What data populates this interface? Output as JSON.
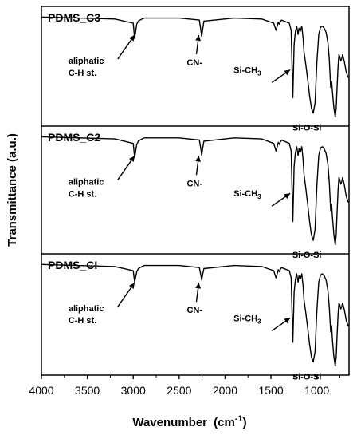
{
  "chart_data": {
    "type": "line",
    "xlabel": "Wavenumber",
    "xlabel_unit": "(cm",
    "xlabel_unit_sup": "-1",
    "xlabel_unit_close": ")",
    "ylabel": "Transmittance (a.u.)",
    "xlim": [
      4000,
      650
    ],
    "x_reversed": true,
    "x_ticks": [
      "4000",
      "3500",
      "3000",
      "2500",
      "2000",
      "1500",
      "1000"
    ],
    "x_tick_values": [
      4000,
      3500,
      3000,
      2500,
      2000,
      1500,
      1000
    ],
    "ylim": [
      0,
      1
    ],
    "line_color": "#000000",
    "panels": [
      {
        "title": "PDMS_C3",
        "series": {
          "x": [
            4000,
            3200,
            3000,
            2985,
            2962,
            2945,
            2905,
            2880,
            2500,
            2280,
            2260,
            2255,
            2245,
            2230,
            1900,
            1600,
            1470,
            1445,
            1420,
            1410,
            1400,
            1385,
            1300,
            1280,
            1262,
            1248,
            1235,
            1220,
            1205,
            1195,
            1180,
            1165,
            1150,
            1140,
            1120,
            1100,
            1080,
            1060,
            1040,
            1020,
            1010,
            1000,
            990,
            980,
            960,
            940,
            920,
            900,
            880,
            865,
            850,
            840,
            830,
            815,
            800,
            790,
            780,
            770,
            760,
            750,
            740,
            730,
            720,
            700,
            680,
            660,
            650
          ],
          "y": [
            0.99,
            0.97,
            0.93,
            0.78,
            0.92,
            0.95,
            0.97,
            0.98,
            0.98,
            0.96,
            0.84,
            0.8,
            0.86,
            0.95,
            0.98,
            0.97,
            0.93,
            0.86,
            0.94,
            0.92,
            0.94,
            0.96,
            0.93,
            0.86,
            0.2,
            0.72,
            0.84,
            0.9,
            0.82,
            0.88,
            0.85,
            0.9,
            0.78,
            0.65,
            0.52,
            0.38,
            0.22,
            0.1,
            0.05,
            0.15,
            0.35,
            0.55,
            0.68,
            0.82,
            0.89,
            0.9,
            0.88,
            0.84,
            0.74,
            0.58,
            0.3,
            0.36,
            0.25,
            0.1,
            0.01,
            0.1,
            0.3,
            0.5,
            0.62,
            0.6,
            0.56,
            0.58,
            0.62,
            0.55,
            0.45,
            0.4,
            0.4
          ]
        },
        "annotations": [
          {
            "text_lines": [
              "aliphatic",
              "C-H st."
            ],
            "x": 2960,
            "y": 0.86
          },
          {
            "text_lines": [
              "CN-"
            ],
            "x": 2260,
            "y": 0.86
          },
          {
            "text_lines": [
              "Si-CH",
              "3"
            ],
            "x": 1265,
            "y": 0.52
          },
          {
            "text_lines": [
              "Si-O-Si"
            ],
            "x": 990,
            "y": 0.05
          }
        ]
      },
      {
        "title": "PDMS_C2",
        "series": {
          "x": [
            4000,
            3200,
            3000,
            2985,
            2962,
            2945,
            2905,
            2880,
            2500,
            2280,
            2260,
            2255,
            2245,
            2230,
            1900,
            1600,
            1470,
            1445,
            1420,
            1410,
            1400,
            1385,
            1300,
            1280,
            1262,
            1248,
            1235,
            1220,
            1205,
            1195,
            1180,
            1165,
            1150,
            1140,
            1120,
            1100,
            1080,
            1060,
            1040,
            1020,
            1010,
            1000,
            990,
            980,
            960,
            940,
            920,
            900,
            880,
            865,
            850,
            840,
            830,
            815,
            800,
            790,
            780,
            770,
            760,
            750,
            740,
            730,
            720,
            700,
            680,
            660,
            650
          ],
          "y": [
            0.99,
            0.97,
            0.93,
            0.8,
            0.92,
            0.95,
            0.97,
            0.98,
            0.98,
            0.96,
            0.86,
            0.82,
            0.88,
            0.95,
            0.98,
            0.97,
            0.93,
            0.86,
            0.94,
            0.92,
            0.94,
            0.96,
            0.93,
            0.86,
            0.22,
            0.72,
            0.84,
            0.9,
            0.82,
            0.88,
            0.85,
            0.9,
            0.78,
            0.65,
            0.52,
            0.38,
            0.22,
            0.1,
            0.05,
            0.15,
            0.35,
            0.55,
            0.68,
            0.82,
            0.89,
            0.9,
            0.88,
            0.84,
            0.74,
            0.58,
            0.32,
            0.38,
            0.25,
            0.1,
            0.01,
            0.1,
            0.3,
            0.5,
            0.62,
            0.6,
            0.56,
            0.58,
            0.62,
            0.55,
            0.45,
            0.4,
            0.4
          ]
        },
        "annotations": [
          {
            "text_lines": [
              "aliphatic",
              "C-H st."
            ],
            "x": 2960,
            "y": 0.86
          },
          {
            "text_lines": [
              "CN-"
            ],
            "x": 2260,
            "y": 0.86
          },
          {
            "text_lines": [
              "Si-CH",
              "3"
            ],
            "x": 1265,
            "y": 0.52
          },
          {
            "text_lines": [
              "Si-O-Si"
            ],
            "x": 990,
            "y": 0.05
          }
        ]
      },
      {
        "title": "PDMS_CI",
        "series": {
          "x": [
            4000,
            3200,
            3000,
            2985,
            2962,
            2945,
            2905,
            2880,
            2500,
            2280,
            2260,
            2255,
            2245,
            2230,
            1900,
            1600,
            1470,
            1445,
            1420,
            1410,
            1400,
            1385,
            1300,
            1280,
            1262,
            1248,
            1235,
            1220,
            1205,
            1195,
            1180,
            1165,
            1150,
            1140,
            1120,
            1100,
            1080,
            1060,
            1040,
            1020,
            1010,
            1000,
            990,
            980,
            960,
            940,
            920,
            900,
            880,
            865,
            850,
            840,
            830,
            815,
            800,
            790,
            780,
            770,
            760,
            750,
            740,
            730,
            720,
            700,
            680,
            660,
            650
          ],
          "y": [
            0.99,
            0.97,
            0.93,
            0.82,
            0.92,
            0.95,
            0.97,
            0.98,
            0.98,
            0.96,
            0.87,
            0.84,
            0.89,
            0.95,
            0.98,
            0.97,
            0.93,
            0.86,
            0.94,
            0.92,
            0.94,
            0.96,
            0.93,
            0.86,
            0.24,
            0.72,
            0.84,
            0.9,
            0.82,
            0.88,
            0.85,
            0.9,
            0.78,
            0.65,
            0.52,
            0.38,
            0.22,
            0.1,
            0.05,
            0.15,
            0.35,
            0.55,
            0.68,
            0.82,
            0.89,
            0.9,
            0.88,
            0.84,
            0.74,
            0.58,
            0.34,
            0.4,
            0.25,
            0.1,
            0.01,
            0.1,
            0.3,
            0.5,
            0.62,
            0.6,
            0.56,
            0.58,
            0.62,
            0.55,
            0.45,
            0.4,
            0.4
          ]
        },
        "annotations": [
          {
            "text_lines": [
              "aliphatic",
              "C-H st."
            ],
            "x": 2960,
            "y": 0.86
          },
          {
            "text_lines": [
              "CN-"
            ],
            "x": 2260,
            "y": 0.86
          },
          {
            "text_lines": [
              "Si-CH",
              "3"
            ],
            "x": 1265,
            "y": 0.52
          },
          {
            "text_lines": [
              "Si-O-Si"
            ],
            "x": 990,
            "y": 0.05
          }
        ]
      }
    ]
  }
}
